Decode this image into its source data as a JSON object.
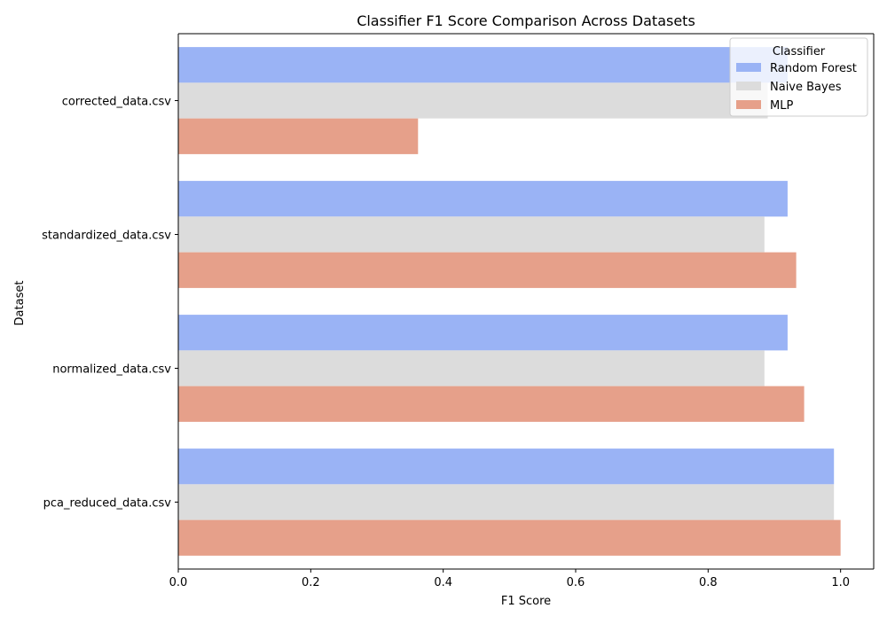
{
  "chart_data": {
    "type": "bar",
    "orientation": "horizontal",
    "title": "Classifier F1 Score Comparison Across Datasets",
    "xlabel": "F1 Score",
    "ylabel": "Dataset",
    "xlim": [
      0,
      1.05
    ],
    "x_ticks": [
      0.0,
      0.2,
      0.4,
      0.6,
      0.8,
      1.0
    ],
    "x_tick_labels": [
      "0.0",
      "0.2",
      "0.4",
      "0.6",
      "0.8",
      "1.0"
    ],
    "categories": [
      "corrected_data.csv",
      "standardized_data.csv",
      "normalized_data.csv",
      "pca_reduced_data.csv"
    ],
    "series": [
      {
        "name": "Random Forest",
        "color": "#9ab3f5",
        "values": [
          0.92,
          0.92,
          0.92,
          0.99
        ]
      },
      {
        "name": "Naive Bayes",
        "color": "#dcdcdc",
        "values": [
          0.89,
          0.885,
          0.885,
          0.99
        ]
      },
      {
        "name": "MLP",
        "color": "#e6a08a",
        "values": [
          0.362,
          0.933,
          0.945,
          1.0
        ]
      }
    ],
    "legend": {
      "title": "Classifier",
      "position": "top-right"
    },
    "grid": false
  }
}
